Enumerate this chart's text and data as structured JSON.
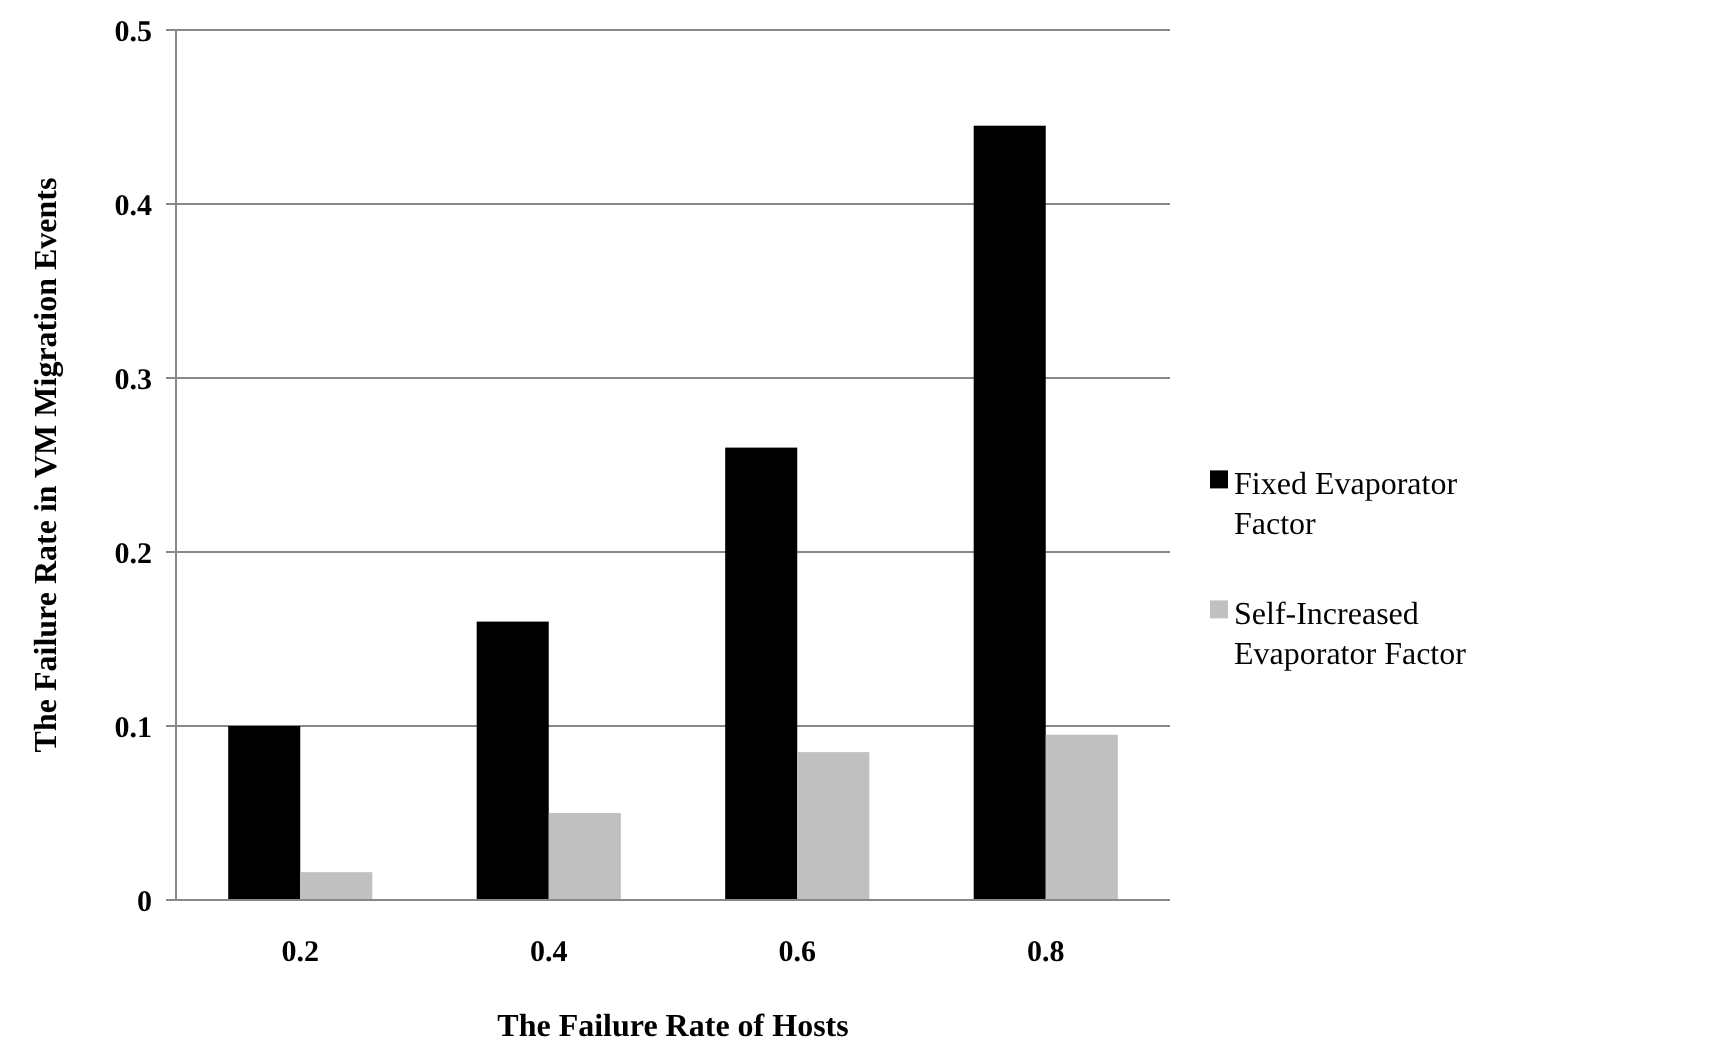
{
  "chart_data": {
    "type": "bar",
    "xlabel": "The Failure Rate of Hosts",
    "ylabel": "The Failure Rate in VM Migration Events",
    "categories": [
      "0.2",
      "0.4",
      "0.6",
      "0.8"
    ],
    "series": [
      {
        "name": "Fixed Evaporator Factor",
        "color": "#000000",
        "values": [
          0.1,
          0.16,
          0.26,
          0.445
        ]
      },
      {
        "name": "Self-Increased Evaporator Factor",
        "color": "#c0c0c0",
        "values": [
          0.016,
          0.05,
          0.085,
          0.095
        ]
      }
    ],
    "ylim": [
      0,
      0.5
    ],
    "yticks": [
      0,
      0.1,
      0.2,
      0.3,
      0.4,
      0.5
    ],
    "grid": "y",
    "legend": "right"
  }
}
